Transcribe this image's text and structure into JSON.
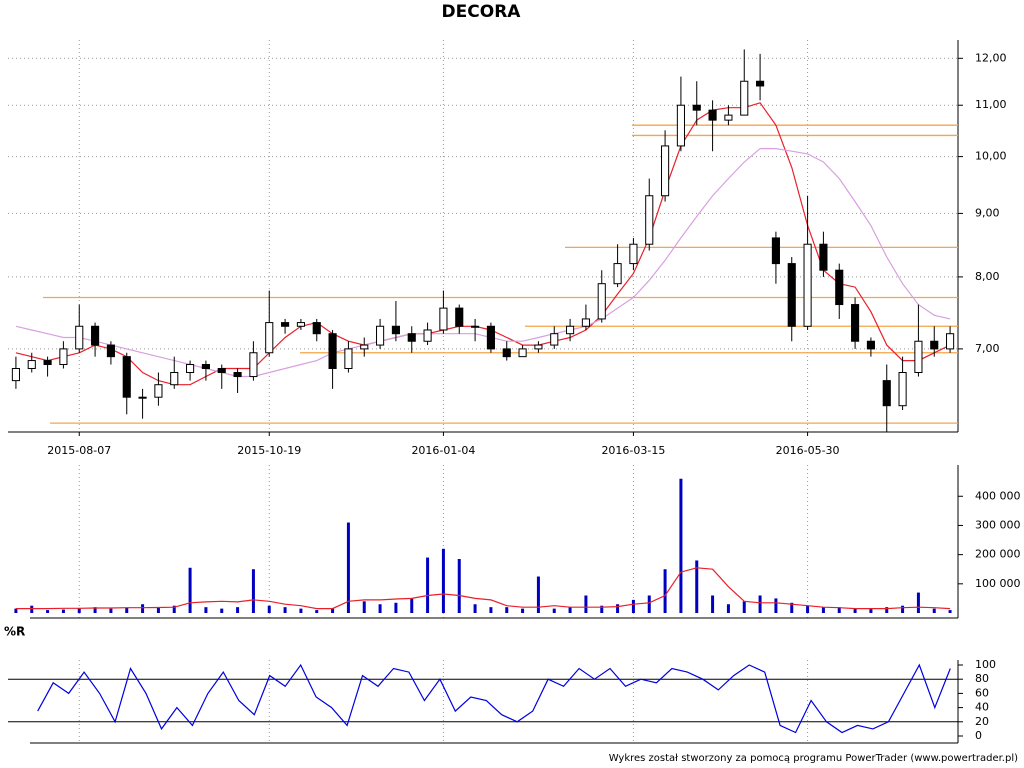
{
  "chart_data": [
    {
      "type": "candlestick",
      "title": "DECORA",
      "categories": [
        null,
        null,
        null,
        null,
        "2015-08-07",
        null,
        null,
        null,
        null,
        null,
        null,
        null,
        null,
        null,
        null,
        null,
        "2015-10-19",
        null,
        null,
        null,
        null,
        null,
        null,
        null,
        null,
        null,
        null,
        "2016-01-04",
        null,
        null,
        null,
        null,
        null,
        null,
        null,
        null,
        null,
        null,
        null,
        "2016-03-15",
        null,
        null,
        null,
        null,
        null,
        null,
        null,
        null,
        null,
        null,
        "2016-05-30",
        null,
        null,
        null,
        null,
        null,
        null,
        null,
        null,
        null
      ],
      "open": [
        6.6,
        6.75,
        6.85,
        6.8,
        7.0,
        7.3,
        7.05,
        6.9,
        6.4,
        6.4,
        6.55,
        6.7,
        6.8,
        6.75,
        6.7,
        6.65,
        6.95,
        7.35,
        7.3,
        7.35,
        7.2,
        6.75,
        7.0,
        7.05,
        7.3,
        7.2,
        7.1,
        7.25,
        7.55,
        7.3,
        7.3,
        7.0,
        6.9,
        7.0,
        7.05,
        7.2,
        7.3,
        7.4,
        7.9,
        8.2,
        8.5,
        9.3,
        10.2,
        11.0,
        10.9,
        10.7,
        10.8,
        11.5,
        8.6,
        8.2,
        7.3,
        8.5,
        8.1,
        7.6,
        7.1,
        6.6,
        6.3,
        6.7,
        7.1,
        7.0
      ],
      "high": [
        6.9,
        6.95,
        6.9,
        7.1,
        7.6,
        7.35,
        7.1,
        6.95,
        6.5,
        6.7,
        6.9,
        6.85,
        6.85,
        6.8,
        6.75,
        7.1,
        7.8,
        7.4,
        7.4,
        7.4,
        7.25,
        7.1,
        7.15,
        7.4,
        7.65,
        7.3,
        7.35,
        7.8,
        7.6,
        7.4,
        7.35,
        7.1,
        7.05,
        7.1,
        7.3,
        7.4,
        7.6,
        8.1,
        8.5,
        8.6,
        9.6,
        10.5,
        11.6,
        11.5,
        11.1,
        11.0,
        12.2,
        12.1,
        8.7,
        8.3,
        9.3,
        8.7,
        8.2,
        7.7,
        7.15,
        6.8,
        6.9,
        7.6,
        7.3,
        7.3
      ],
      "low": [
        6.5,
        6.7,
        6.65,
        6.75,
        6.95,
        6.9,
        6.8,
        6.2,
        6.15,
        6.3,
        6.5,
        6.6,
        6.6,
        6.5,
        6.45,
        6.6,
        6.9,
        7.2,
        7.25,
        7.1,
        6.5,
        6.7,
        6.9,
        7.0,
        7.1,
        6.95,
        7.05,
        7.2,
        7.2,
        7.1,
        6.95,
        6.85,
        6.9,
        6.95,
        7.0,
        7.1,
        7.25,
        7.35,
        7.85,
        8.1,
        8.4,
        9.2,
        10.1,
        10.6,
        10.1,
        10.6,
        10.8,
        11.1,
        7.9,
        7.1,
        7.25,
        8.0,
        7.4,
        7.0,
        6.9,
        6.0,
        6.25,
        6.65,
        6.9,
        6.95
      ],
      "close": [
        6.75,
        6.85,
        6.8,
        7.0,
        7.3,
        7.05,
        6.9,
        6.4,
        6.4,
        6.55,
        6.7,
        6.8,
        6.75,
        6.7,
        6.65,
        6.95,
        7.35,
        7.3,
        7.35,
        7.2,
        6.75,
        7.0,
        7.05,
        7.3,
        7.2,
        7.1,
        7.25,
        7.55,
        7.3,
        7.3,
        7.0,
        6.9,
        7.0,
        7.05,
        7.2,
        7.3,
        7.4,
        7.9,
        8.2,
        8.5,
        9.3,
        10.2,
        11.0,
        10.9,
        10.7,
        10.8,
        11.5,
        11.4,
        8.2,
        7.3,
        8.5,
        8.1,
        7.6,
        7.1,
        7.0,
        6.3,
        6.7,
        7.1,
        7.0,
        7.2
      ],
      "color": "#000000",
      "overlays": [
        {
          "color": "#e8202a",
          "values": [
            6.95,
            6.9,
            6.85,
            6.9,
            6.95,
            7.05,
            7.0,
            6.9,
            6.7,
            6.6,
            6.55,
            6.55,
            6.65,
            6.75,
            6.75,
            6.75,
            6.95,
            7.15,
            7.3,
            7.35,
            7.2,
            7.1,
            7.05,
            7.1,
            7.15,
            7.2,
            7.2,
            7.25,
            7.3,
            7.3,
            7.25,
            7.15,
            7.05,
            7.05,
            7.1,
            7.15,
            7.25,
            7.45,
            7.75,
            8.05,
            8.6,
            9.4,
            10.2,
            10.7,
            10.9,
            10.95,
            10.95,
            11.05,
            10.6,
            9.8,
            8.8,
            8.1,
            7.9,
            7.85,
            7.5,
            7.05,
            6.85,
            6.85,
            6.95,
            7.05
          ]
        },
        {
          "color": "#d8a0e0",
          "values": [
            7.3,
            7.25,
            7.2,
            7.15,
            7.15,
            7.1,
            7.05,
            7.0,
            6.95,
            6.9,
            6.85,
            6.8,
            6.75,
            6.7,
            6.65,
            6.65,
            6.7,
            6.75,
            6.8,
            6.85,
            6.95,
            7.0,
            7.05,
            7.1,
            7.15,
            7.2,
            7.2,
            7.2,
            7.2,
            7.2,
            7.15,
            7.1,
            7.1,
            7.15,
            7.2,
            7.25,
            7.3,
            7.4,
            7.55,
            7.7,
            7.95,
            8.25,
            8.6,
            8.95,
            9.3,
            9.6,
            9.9,
            10.15,
            10.15,
            10.1,
            10.05,
            9.9,
            9.6,
            9.2,
            8.8,
            8.3,
            7.9,
            7.6,
            7.45,
            7.4
          ]
        }
      ],
      "levels": [
        10.6,
        10.4,
        8.45,
        7.7,
        7.3,
        6.95,
        6.1
      ],
      "level_color": "#f5a54a",
      "ylim": [
        6,
        12.3
      ],
      "log_scale": true,
      "grid": true,
      "yticks": [
        {
          "value": 7,
          "label": "7,00"
        },
        {
          "value": 8,
          "label": "8,00"
        },
        {
          "value": 9,
          "label": "9,00"
        },
        {
          "value": 10,
          "label": "10,00"
        },
        {
          "value": 11,
          "label": "11,00"
        },
        {
          "value": 12,
          "label": "12,00"
        }
      ]
    },
    {
      "type": "bar",
      "values": [
        15000,
        25000,
        10000,
        12000,
        15000,
        20000,
        15000,
        18000,
        30000,
        20000,
        25000,
        155000,
        20000,
        15000,
        20000,
        150000,
        25000,
        20000,
        15000,
        10000,
        15000,
        310000,
        40000,
        30000,
        35000,
        50000,
        190000,
        220000,
        185000,
        30000,
        20000,
        20000,
        15000,
        125000,
        15000,
        20000,
        60000,
        25000,
        30000,
        45000,
        60000,
        150000,
        460000,
        180000,
        60000,
        30000,
        40000,
        60000,
        50000,
        35000,
        25000,
        20000,
        20000,
        15000,
        15000,
        20000,
        25000,
        70000,
        15000,
        10000
      ],
      "color": "#0000c0",
      "average": {
        "color": "#e8202a",
        "values": [
          15000,
          15000,
          15000,
          16000,
          16000,
          17000,
          17000,
          18000,
          18000,
          19000,
          20000,
          35000,
          38000,
          40000,
          38000,
          45000,
          40000,
          30000,
          25000,
          15000,
          15000,
          40000,
          45000,
          45000,
          48000,
          50000,
          60000,
          65000,
          60000,
          50000,
          45000,
          25000,
          20000,
          20000,
          25000,
          20000,
          20000,
          20000,
          22000,
          30000,
          35000,
          60000,
          140000,
          155000,
          150000,
          90000,
          40000,
          35000,
          35000,
          30000,
          25000,
          20000,
          18000,
          15000,
          15000,
          15000,
          18000,
          20000,
          18000,
          15000
        ]
      },
      "ylim": [
        0,
        490000
      ],
      "grid": false,
      "yticks": [
        {
          "value": 100000,
          "label": "100 000"
        },
        {
          "value": 200000,
          "label": "200 000"
        },
        {
          "value": 300000,
          "label": "300 000"
        },
        {
          "value": 400000,
          "label": "400 000"
        }
      ]
    },
    {
      "type": "line",
      "title": "%R",
      "values": [
        35,
        75,
        60,
        90,
        60,
        20,
        95,
        60,
        10,
        40,
        15,
        60,
        90,
        50,
        30,
        85,
        70,
        100,
        55,
        40,
        15,
        85,
        70,
        95,
        90,
        50,
        80,
        35,
        55,
        50,
        30,
        20,
        35,
        80,
        70,
        95,
        80,
        95,
        70,
        80,
        75,
        95,
        90,
        80,
        65,
        85,
        100,
        90,
        15,
        5,
        50,
        20,
        5,
        15,
        10,
        20,
        60,
        100,
        40,
        95
      ],
      "color": "#0000e0",
      "ylim": [
        0,
        100
      ],
      "yticks": [
        0,
        20,
        40,
        60,
        80,
        100
      ],
      "hlines": [
        20,
        80
      ],
      "grid": false
    }
  ],
  "footer": "Wykres został stworzony za pomocą programu PowerTrader (www.powertrader.pl)"
}
